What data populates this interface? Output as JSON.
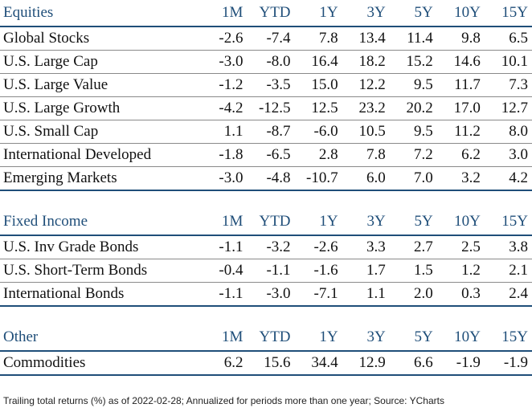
{
  "columns": [
    "1M",
    "YTD",
    "1Y",
    "3Y",
    "5Y",
    "10Y",
    "15Y"
  ],
  "sections": [
    {
      "title": "Equities",
      "rows": [
        {
          "name": "Global Stocks",
          "values": [
            "-2.6",
            "-7.4",
            "7.8",
            "13.4",
            "11.4",
            "9.8",
            "6.5"
          ]
        },
        {
          "name": "U.S. Large Cap",
          "values": [
            "-3.0",
            "-8.0",
            "16.4",
            "18.2",
            "15.2",
            "14.6",
            "10.1"
          ]
        },
        {
          "name": "U.S. Large Value",
          "values": [
            "-1.2",
            "-3.5",
            "15.0",
            "12.2",
            "9.5",
            "11.7",
            "7.3"
          ]
        },
        {
          "name": "U.S. Large Growth",
          "values": [
            "-4.2",
            "-12.5",
            "12.5",
            "23.2",
            "20.2",
            "17.0",
            "12.7"
          ]
        },
        {
          "name": "U.S. Small Cap",
          "values": [
            "1.1",
            "-8.7",
            "-6.0",
            "10.5",
            "9.5",
            "11.2",
            "8.0"
          ]
        },
        {
          "name": "International Developed",
          "values": [
            "-1.8",
            "-6.5",
            "2.8",
            "7.8",
            "7.2",
            "6.2",
            "3.0"
          ]
        },
        {
          "name": "Emerging Markets",
          "values": [
            "-3.0",
            "-4.8",
            "-10.7",
            "6.0",
            "7.0",
            "3.2",
            "4.2"
          ]
        }
      ]
    },
    {
      "title": "Fixed Income",
      "rows": [
        {
          "name": "U.S. Inv Grade Bonds",
          "values": [
            "-1.1",
            "-3.2",
            "-2.6",
            "3.3",
            "2.7",
            "2.5",
            "3.8"
          ]
        },
        {
          "name": "U.S. Short-Term Bonds",
          "values": [
            "-0.4",
            "-1.1",
            "-1.6",
            "1.7",
            "1.5",
            "1.2",
            "2.1"
          ]
        },
        {
          "name": "International Bonds",
          "values": [
            "-1.1",
            "-3.0",
            "-7.1",
            "1.1",
            "2.0",
            "0.3",
            "2.4"
          ]
        }
      ]
    },
    {
      "title": "Other",
      "rows": [
        {
          "name": "Commodities",
          "values": [
            "6.2",
            "15.6",
            "34.4",
            "12.9",
            "6.6",
            "-1.9",
            "-1.9"
          ]
        }
      ]
    }
  ],
  "footnote": "Trailing total returns (%) as of 2022-02-28; Annualized for periods more than one year; Source: YCharts",
  "colors": {
    "header_text": "#1f4e79",
    "header_rule": "#1f4e79",
    "row_rule": "#8a8a8a",
    "text": "#111111"
  }
}
